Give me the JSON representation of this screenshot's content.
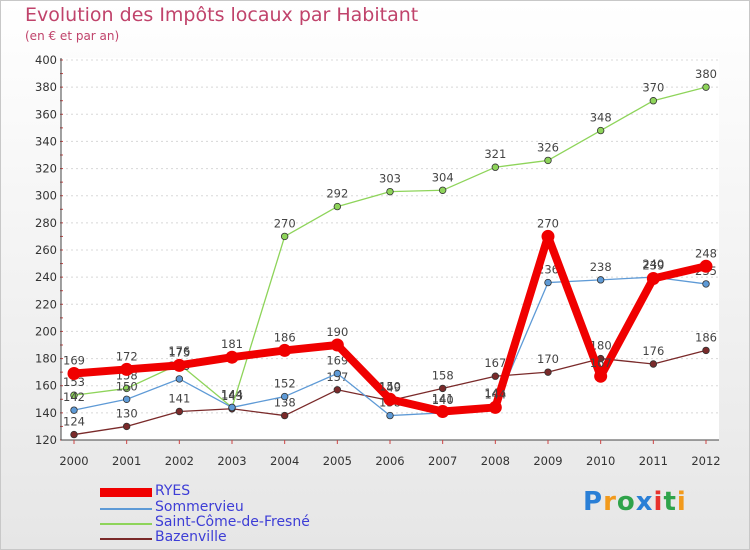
{
  "header": {
    "title": "Evolution des Impôts locaux par Habitant",
    "subtitle": "(en € et par an)"
  },
  "logo": {
    "text": "Proxiti",
    "colors": [
      "#2a7fd6",
      "#f29a1c",
      "#2fa34a",
      "#2a7fd6",
      "#e8322c",
      "#2fa34a",
      "#f29a1c"
    ]
  },
  "chart_data": {
    "type": "line",
    "title": "Evolution des Impôts locaux par Habitant",
    "subtitle": "(en € et par an)",
    "xlabel": "",
    "ylabel": "",
    "categories": [
      "2000",
      "2001",
      "2002",
      "2003",
      "2004",
      "2005",
      "2006",
      "2007",
      "2008",
      "2009",
      "2010",
      "2011",
      "2012"
    ],
    "ylim": [
      120,
      400
    ],
    "yticks": [
      120,
      140,
      160,
      180,
      200,
      220,
      240,
      260,
      280,
      300,
      320,
      340,
      360,
      380,
      400
    ],
    "grid": "horizontal dashed",
    "legend": "bottom-left",
    "series": [
      {
        "name": "Bazenville",
        "color": "#7a2a2a",
        "values": [
          124,
          130,
          141,
          143,
          138,
          157,
          149,
          158,
          167,
          170,
          180,
          176,
          186
        ]
      },
      {
        "name": "Saint-Côme-de-Fresné",
        "color": "#8ed45a",
        "values": [
          153,
          158,
          176,
          144,
          270,
          292,
          303,
          304,
          321,
          326,
          348,
          370,
          380
        ]
      },
      {
        "name": "Sommervieu",
        "color": "#5e9ad6",
        "values": [
          142,
          150,
          165,
          144,
          152,
          169,
          138,
          140,
          145,
          236,
          238,
          240,
          235
        ]
      },
      {
        "name": "RYES",
        "color": "#f00000",
        "values": [
          169,
          172,
          175,
          181,
          186,
          190,
          150,
          141,
          144,
          270,
          167,
          239,
          248
        ]
      }
    ],
    "legend_order": [
      "RYES",
      "Sommervieu",
      "Saint-Côme-de-Fresné",
      "Bazenville"
    ]
  }
}
